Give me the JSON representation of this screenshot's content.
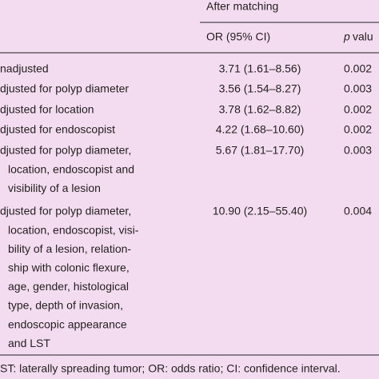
{
  "table": {
    "group_header": "After matching",
    "columns": {
      "or": "OR (95% CI)",
      "p_symbol": "p",
      "p_rest": "valu"
    },
    "rows": [
      {
        "label": [
          "nadjusted"
        ],
        "or": "3.71 (1.61–8.56)",
        "p": "0.002"
      },
      {
        "label": [
          "djusted for polyp diameter"
        ],
        "or": "3.56 (1.54–8.27)",
        "p": "0.003"
      },
      {
        "label": [
          "djusted for location"
        ],
        "or": "3.78 (1.62–8.82)",
        "p": "0.002"
      },
      {
        "label": [
          "djusted for endoscopist"
        ],
        "or": "4.22 (1.68–10.60)",
        "p": "0.002"
      },
      {
        "label": [
          "djusted for polyp diameter,",
          "location, endoscopist and",
          "visibility of a lesion"
        ],
        "or": "5.67 (1.81–17.70)",
        "p": "0.003"
      },
      {
        "label": [
          "djusted for polyp diameter,",
          "location, endoscopist, visi-",
          "bility of a lesion, relation-",
          "ship with colonic flexure,",
          "age, gender, histological",
          "type, depth of invasion,",
          "endoscopic appearance",
          "and LST"
        ],
        "or": "10.90 (2.15–55.40)",
        "p": "0.004"
      }
    ],
    "footnote": "ST: laterally spreading tumor; OR: odds ratio; CI: confidence interval."
  }
}
